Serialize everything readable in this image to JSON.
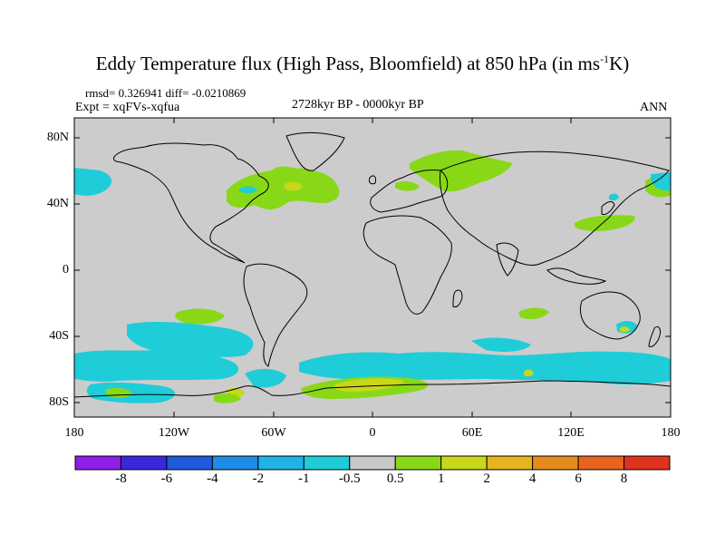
{
  "title_main": "Eddy Temperature flux (High Pass, Bloomfield) at 850 hPa (in ms",
  "title_sup": "-1",
  "title_end": "K)",
  "stats": "rmsd= 0.326941 diff= -0.0210869",
  "experiment": "Expt = xqFVs-xqfua",
  "period": "2728kyr BP - 0000kyr BP",
  "season": "ANN",
  "map": {
    "projection": "cylindrical-equidistant",
    "background_color": "#cccccc",
    "lat_ticks": [
      "80N",
      "40N",
      "0",
      "40S",
      "80S"
    ],
    "lon_ticks": [
      "180",
      "120W",
      "60W",
      "0",
      "60E",
      "120E",
      "180"
    ],
    "field": "eddy temperature flux difference",
    "features": [
      {
        "region": "North Atlantic / Greenland",
        "level": "0.5 to 1",
        "color": "#89d818"
      },
      {
        "region": "Siberia / Arctic Eurasia",
        "level": "0.5 to 1",
        "color": "#89d818"
      },
      {
        "region": "North Pacific off Japan",
        "level": "0.5 to 1",
        "color": "#89d818"
      },
      {
        "region": "NE Pacific near Alaska",
        "level": "-1 to -0.5",
        "color": "#1ecdd8"
      },
      {
        "region": "Southern Ocean belt 40S-70S",
        "level": "-1 to -0.5",
        "color": "#1ecdd8"
      },
      {
        "region": "Antarctic coast (Weddell/Ross)",
        "level": "1 to 2",
        "color": "#c8d818"
      }
    ]
  },
  "colorbar": {
    "labels": [
      "-8",
      "-6",
      "-4",
      "-2",
      "-1",
      "-0.5",
      "0.5",
      "1",
      "2",
      "4",
      "6",
      "8"
    ],
    "colors": [
      "#8c1ee6",
      "#3a28dc",
      "#1e5adc",
      "#1e8ce6",
      "#1eb4e6",
      "#1ecdd8",
      "#c8c8c8",
      "#89d818",
      "#c8d818",
      "#e6b41e",
      "#e68c1e",
      "#e6641e",
      "#e0321e"
    ]
  }
}
